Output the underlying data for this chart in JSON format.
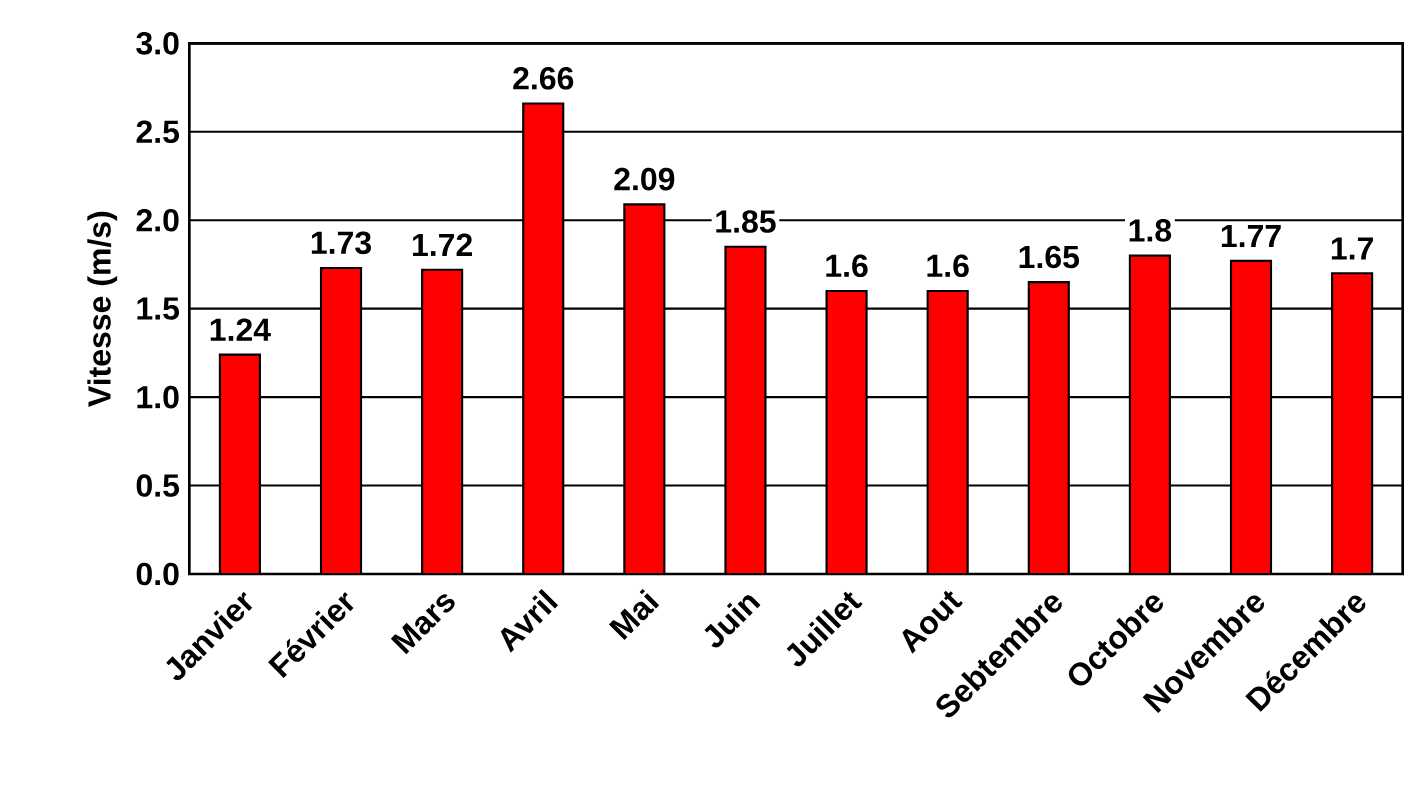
{
  "chart_data": {
    "type": "bar",
    "ylabel": "Vitesse (m/s)",
    "categories": [
      "Janvier",
      "Février",
      "Mars",
      "Avril",
      "Mai",
      "Juin",
      "Juillet",
      "Aout",
      "Sebtembre",
      "Octobre",
      "Novembre",
      "Décembre"
    ],
    "values": [
      1.24,
      1.73,
      1.72,
      2.66,
      2.09,
      1.85,
      1.6,
      1.6,
      1.65,
      1.8,
      1.77,
      1.7
    ],
    "color": "#ff0000",
    "ylim": [
      0,
      3
    ],
    "yticks": [
      {
        "value": 0,
        "label": "0.0"
      },
      {
        "value": 0.5,
        "label": "0.5"
      },
      {
        "value": 1,
        "label": "1.0"
      },
      {
        "value": 1.5,
        "label": "1.5"
      },
      {
        "value": 2,
        "label": "2.0"
      },
      {
        "value": 2.5,
        "label": "2.5"
      },
      {
        "value": 3,
        "label": "3.0"
      }
    ],
    "grid": "y",
    "data_labels": true
  }
}
